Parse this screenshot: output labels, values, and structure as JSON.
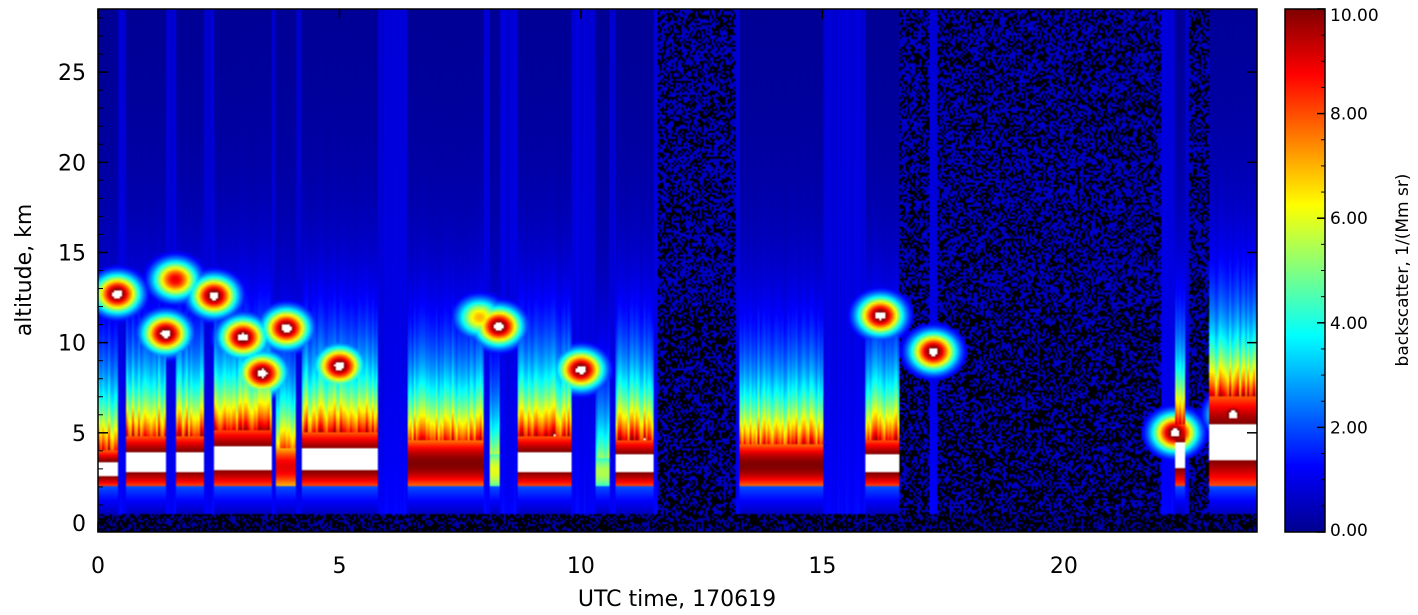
{
  "chart_data": {
    "type": "heatmap",
    "title": "",
    "xlabel": "UTC time, 170619",
    "ylabel": "altitude, km",
    "xlim": [
      0,
      24
    ],
    "ylim": [
      -0.5,
      28.5
    ],
    "xticks": [
      0,
      5,
      10,
      15,
      20
    ],
    "xtick_labels": [
      "0",
      "5",
      "10",
      "15",
      "20"
    ],
    "yticks": [
      0,
      5,
      10,
      15,
      20,
      25
    ],
    "ytick_labels": [
      "0",
      "5",
      "10",
      "15",
      "20",
      "25"
    ],
    "colorbar": {
      "label": "backscatter, 1/(Mm sr)",
      "range": [
        0,
        10
      ],
      "ticks": [
        0,
        2,
        4,
        6,
        8,
        10
      ],
      "tick_labels": [
        "0.00",
        "2.00",
        "4.00",
        "6.00",
        "8.00",
        "10.00"
      ],
      "colormap": "jet",
      "saturated_color": "#ffffff"
    },
    "no_signal_periods_utc": [
      [
        11.6,
        13.2
      ],
      [
        16.6,
        17.2
      ],
      [
        17.4,
        22.0
      ],
      [
        22.6,
        23.0
      ]
    ],
    "boundary_layer_segments": [
      {
        "t": [
          0.0,
          0.4
        ],
        "top_km": 4.0,
        "peak": 10.5
      },
      {
        "t": [
          0.6,
          1.4
        ],
        "top_km": 4.8,
        "peak": 10.5
      },
      {
        "t": [
          1.6,
          2.2
        ],
        "top_km": 4.8,
        "peak": 10.5
      },
      {
        "t": [
          2.4,
          3.6
        ],
        "top_km": 5.2,
        "peak": 10.5
      },
      {
        "t": [
          3.7,
          4.1
        ],
        "top_km": 4.2,
        "peak": 9.0
      },
      {
        "t": [
          4.2,
          5.8
        ],
        "top_km": 5.0,
        "peak": 10.5
      },
      {
        "t": [
          6.4,
          8.0
        ],
        "top_km": 4.6,
        "peak": 10.0
      },
      {
        "t": [
          8.1,
          8.3
        ],
        "top_km": 3.8,
        "peak": 6.0
      },
      {
        "t": [
          8.7,
          9.8
        ],
        "top_km": 4.8,
        "peak": 10.5
      },
      {
        "t": [
          10.3,
          10.6
        ],
        "top_km": 3.6,
        "peak": 5.5
      },
      {
        "t": [
          10.7,
          11.5
        ],
        "top_km": 4.6,
        "peak": 10.5
      },
      {
        "t": [
          13.3,
          15.0
        ],
        "top_km": 4.4,
        "peak": 10.0
      },
      {
        "t": [
          15.9,
          16.6
        ],
        "top_km": 4.6,
        "peak": 10.5
      },
      {
        "t": [
          22.3,
          22.5
        ],
        "top_km": 5.5,
        "peak": 10.5
      },
      {
        "t": [
          23.0,
          24.0
        ],
        "top_km": 7.0,
        "peak": 10.5
      }
    ],
    "cloud_features": [
      {
        "t": 0.4,
        "z_km": 12.7,
        "peak": 10.5
      },
      {
        "t": 1.4,
        "z_km": 10.5,
        "peak": 10.5
      },
      {
        "t": 1.6,
        "z_km": 13.5,
        "peak": 9.0
      },
      {
        "t": 2.4,
        "z_km": 12.6,
        "peak": 10.5
      },
      {
        "t": 3.0,
        "z_km": 10.3,
        "peak": 10.5
      },
      {
        "t": 3.4,
        "z_km": 8.3,
        "peak": 10.5
      },
      {
        "t": 3.9,
        "z_km": 10.8,
        "peak": 10.5
      },
      {
        "t": 5.0,
        "z_km": 8.7,
        "peak": 10.5
      },
      {
        "t": 7.9,
        "z_km": 11.4,
        "peak": 7.0
      },
      {
        "t": 8.3,
        "z_km": 10.9,
        "peak": 10.5
      },
      {
        "t": 10.0,
        "z_km": 8.5,
        "peak": 10.5
      },
      {
        "t": 16.2,
        "z_km": 11.5,
        "peak": 10.5
      },
      {
        "t": 17.3,
        "z_km": 9.5,
        "peak": 10.5
      },
      {
        "t": 22.3,
        "z_km": 5.0,
        "peak": 10.5
      },
      {
        "t": 23.5,
        "z_km": 6.0,
        "peak": 10.5
      }
    ]
  }
}
